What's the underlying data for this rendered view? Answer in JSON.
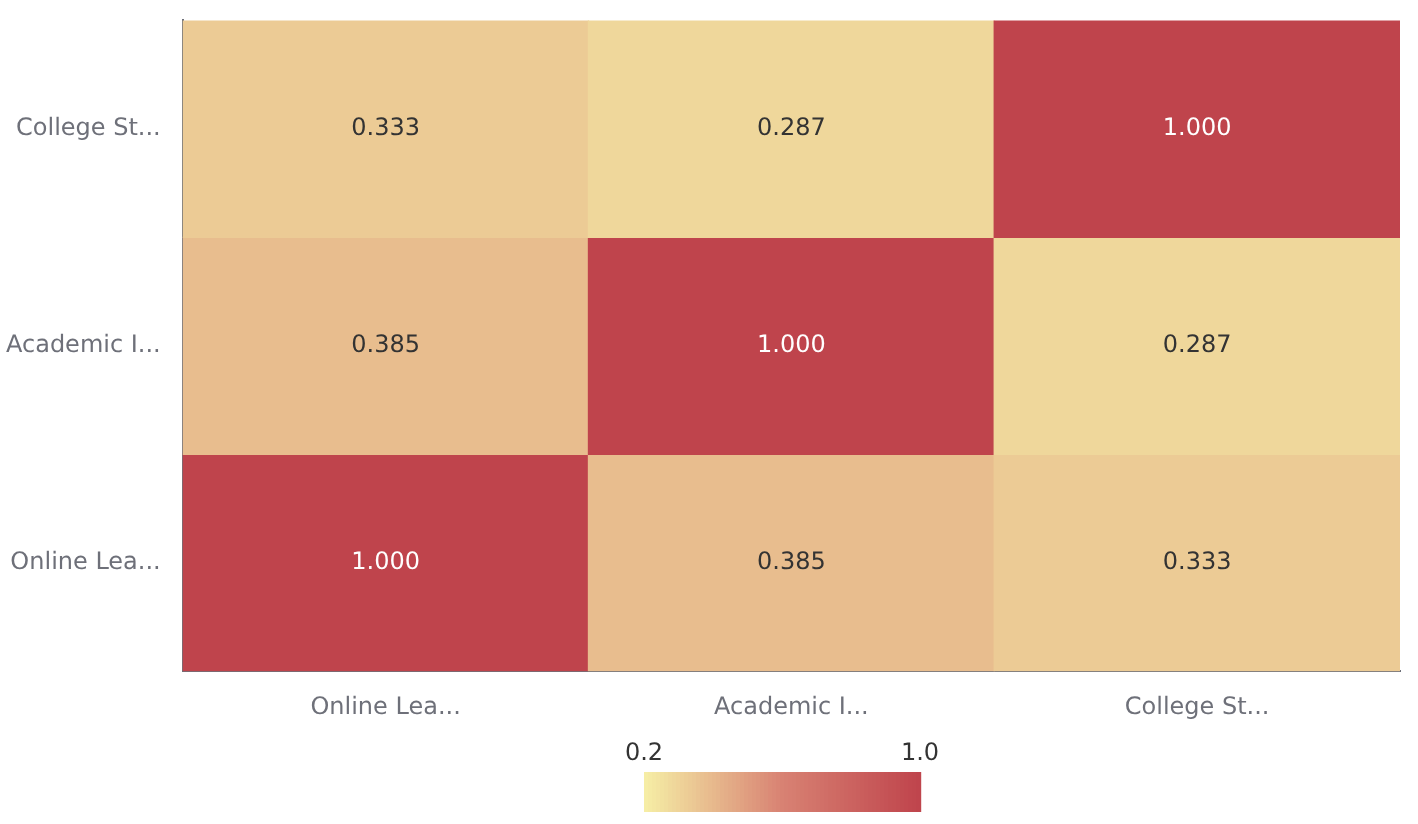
{
  "chart_data": {
    "type": "heatmap",
    "categories": [
      "Online Lea...",
      "Academic I...",
      "College St..."
    ],
    "y_categories": [
      "College St...",
      "Academic I...",
      "Online Lea..."
    ],
    "cells": [
      [
        0.333,
        0.287,
        1.0
      ],
      [
        0.385,
        1.0,
        0.287
      ],
      [
        1.0,
        0.385,
        0.333
      ]
    ],
    "cell_labels": [
      [
        "0.333",
        "0.287",
        "1.000"
      ],
      [
        "0.385",
        "1.000",
        "0.287"
      ],
      [
        "1.000",
        "0.385",
        "0.333"
      ]
    ],
    "clim": [
      0.2,
      1.0
    ],
    "cticks": [
      0.2,
      {
        "value": 1.0,
        "label": "1.0"
      }
    ]
  }
}
